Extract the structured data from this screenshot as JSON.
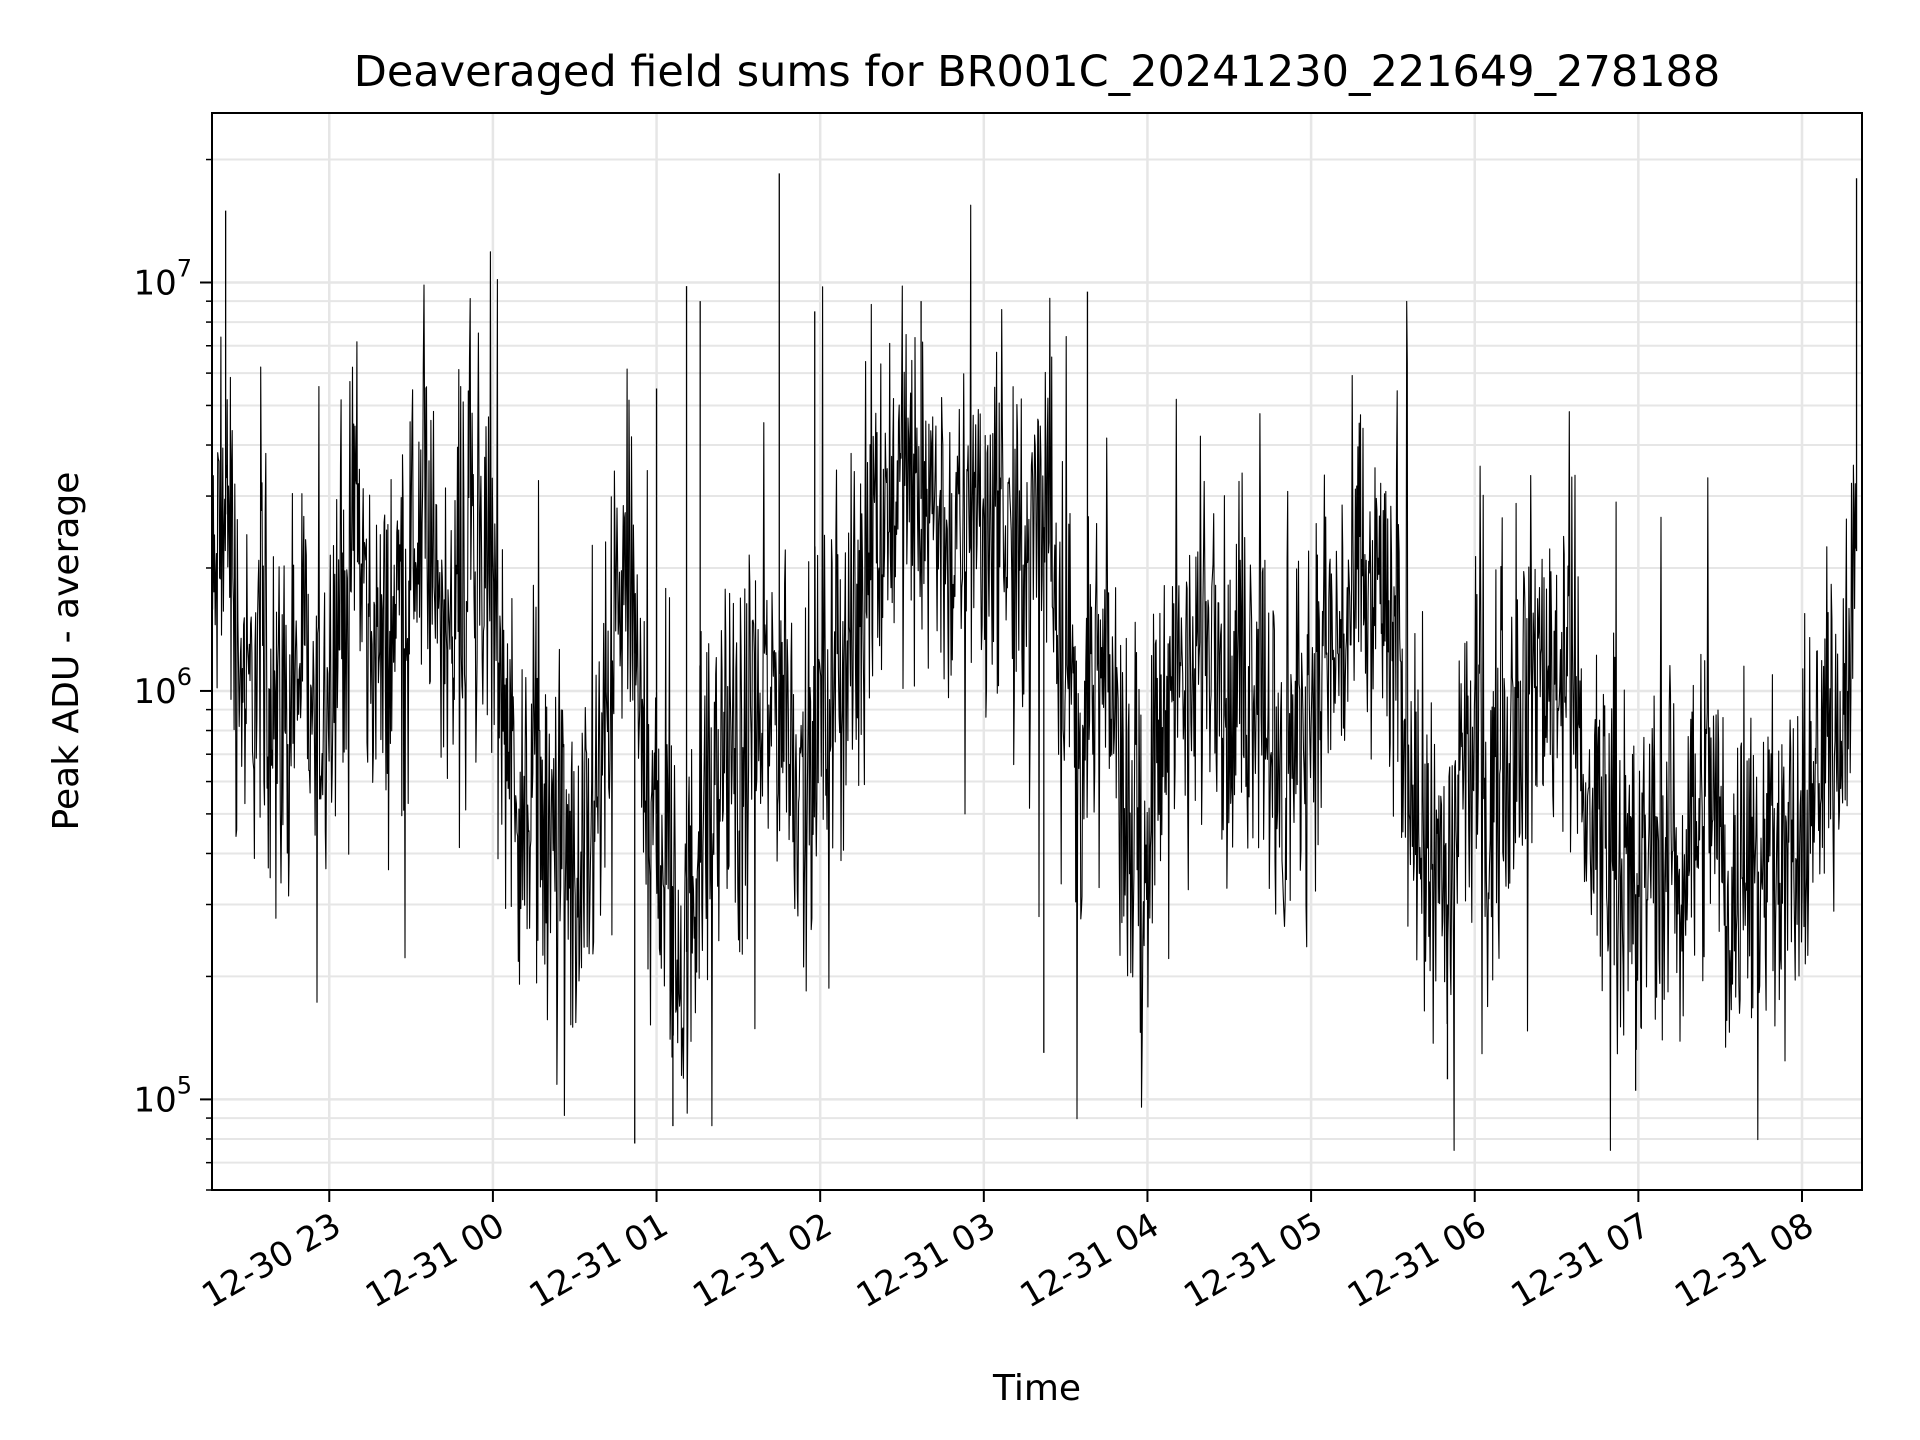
{
  "chart_data": {
    "type": "line",
    "title": "Deaveraged field sums for BR001C_20241230_221649_278188",
    "xlabel": "Time",
    "ylabel": "Peak ADU - average",
    "y_scale": "log",
    "ylim": [
      60000,
      26000000
    ],
    "xlim": [
      "2024-12-30 22:17",
      "2024-12-31 08:22"
    ],
    "grid": true,
    "line_color": "#000000",
    "grid_color": "#e6e6e6",
    "x_ticks": [
      {
        "value": "2024-12-30 23:00",
        "label": "12-30 23"
      },
      {
        "value": "2024-12-31 00:00",
        "label": "12-31 00"
      },
      {
        "value": "2024-12-31 01:00",
        "label": "12-31 01"
      },
      {
        "value": "2024-12-31 02:00",
        "label": "12-31 02"
      },
      {
        "value": "2024-12-31 03:00",
        "label": "12-31 03"
      },
      {
        "value": "2024-12-31 04:00",
        "label": "12-31 04"
      },
      {
        "value": "2024-12-31 05:00",
        "label": "12-31 05"
      },
      {
        "value": "2024-12-31 06:00",
        "label": "12-31 06"
      },
      {
        "value": "2024-12-31 07:00",
        "label": "12-31 07"
      },
      {
        "value": "2024-12-31 08:00",
        "label": "12-31 08"
      }
    ],
    "y_ticks": [
      {
        "value": 100000,
        "base": "10",
        "exp": "5"
      },
      {
        "value": 1000000,
        "base": "10",
        "exp": "6"
      },
      {
        "value": 10000000,
        "base": "10",
        "exp": "7"
      }
    ],
    "series": [
      {
        "x": [
          "2024-12-30 22:17",
          "2024-12-30 22:20",
          "2024-12-30 22:23",
          "2024-12-30 22:26",
          "2024-12-30 22:30",
          "2024-12-30 22:35",
          "2024-12-30 22:40",
          "2024-12-30 22:45",
          "2024-12-30 22:50",
          "2024-12-30 22:55",
          "2024-12-30 23:00",
          "2024-12-30 23:05",
          "2024-12-30 23:10",
          "2024-12-30 23:15",
          "2024-12-30 23:20",
          "2024-12-30 23:25",
          "2024-12-30 23:30",
          "2024-12-30 23:35",
          "2024-12-30 23:40",
          "2024-12-30 23:45",
          "2024-12-30 23:50",
          "2024-12-30 23:55",
          "2024-12-31 00:00",
          "2024-12-31 00:05",
          "2024-12-31 00:10",
          "2024-12-31 00:15",
          "2024-12-31 00:20",
          "2024-12-31 00:25",
          "2024-12-31 00:30",
          "2024-12-31 00:35",
          "2024-12-31 00:40",
          "2024-12-31 00:45",
          "2024-12-31 00:50",
          "2024-12-31 00:55",
          "2024-12-31 01:00",
          "2024-12-31 01:05",
          "2024-12-31 01:10",
          "2024-12-31 01:15",
          "2024-12-31 01:20",
          "2024-12-31 01:25",
          "2024-12-31 01:30",
          "2024-12-31 01:35",
          "2024-12-31 01:40",
          "2024-12-31 01:45",
          "2024-12-31 01:50",
          "2024-12-31 01:55",
          "2024-12-31 02:00",
          "2024-12-31 02:05",
          "2024-12-31 02:10",
          "2024-12-31 02:15",
          "2024-12-31 02:20",
          "2024-12-31 02:25",
          "2024-12-31 02:30",
          "2024-12-31 02:35",
          "2024-12-31 02:40",
          "2024-12-31 02:45",
          "2024-12-31 02:50",
          "2024-12-31 02:55",
          "2024-12-31 03:00",
          "2024-12-31 03:05",
          "2024-12-31 03:10",
          "2024-12-31 03:15",
          "2024-12-31 03:20",
          "2024-12-31 03:25",
          "2024-12-31 03:30",
          "2024-12-31 03:35",
          "2024-12-31 03:40",
          "2024-12-31 03:45",
          "2024-12-31 03:50",
          "2024-12-31 03:55",
          "2024-12-31 04:00",
          "2024-12-31 04:05",
          "2024-12-31 04:10",
          "2024-12-31 04:15",
          "2024-12-31 04:20",
          "2024-12-31 04:25",
          "2024-12-31 04:30",
          "2024-12-31 04:35",
          "2024-12-31 04:40",
          "2024-12-31 04:45",
          "2024-12-31 04:50",
          "2024-12-31 04:55",
          "2024-12-31 05:00",
          "2024-12-31 05:05",
          "2024-12-31 05:10",
          "2024-12-31 05:15",
          "2024-12-31 05:20",
          "2024-12-31 05:25",
          "2024-12-31 05:30",
          "2024-12-31 05:35",
          "2024-12-31 05:40",
          "2024-12-31 05:45",
          "2024-12-31 05:50",
          "2024-12-31 05:55",
          "2024-12-31 06:00",
          "2024-12-31 06:05",
          "2024-12-31 06:10",
          "2024-12-31 06:15",
          "2024-12-31 06:20",
          "2024-12-31 06:25",
          "2024-12-31 06:30",
          "2024-12-31 06:35",
          "2024-12-31 06:40",
          "2024-12-31 06:45",
          "2024-12-31 06:50",
          "2024-12-31 06:55",
          "2024-12-31 07:00",
          "2024-12-31 07:05",
          "2024-12-31 07:10",
          "2024-12-31 07:15",
          "2024-12-31 07:20",
          "2024-12-31 07:25",
          "2024-12-31 07:30",
          "2024-12-31 07:35",
          "2024-12-31 07:40",
          "2024-12-31 07:45",
          "2024-12-31 07:50",
          "2024-12-31 07:55",
          "2024-12-31 08:00",
          "2024-12-31 08:05",
          "2024-12-31 08:10",
          "2024-12-31 08:15",
          "2024-12-31 08:20"
        ],
        "y": [
          1500000,
          2200000,
          3000000,
          1400000,
          900000,
          1200000,
          1000000,
          800000,
          1300000,
          700000,
          1200000,
          1800000,
          2500000,
          1500000,
          1100000,
          1700000,
          2200000,
          2600000,
          1500000,
          1800000,
          2800000,
          2500000,
          1700000,
          900000,
          500000,
          700000,
          400000,
          450000,
          300000,
          350000,
          600000,
          1500000,
          2000000,
          800000,
          500000,
          300000,
          200000,
          400000,
          500000,
          700000,
          600000,
          900000,
          800000,
          1100000,
          700000,
          600000,
          900000,
          1000000,
          1200000,
          1800000,
          2400000,
          3000000,
          3500000,
          2800000,
          3200000,
          2500000,
          2000000,
          2800000,
          2600000,
          3000000,
          2200000,
          1800000,
          2600000,
          2400000,
          1400000,
          700000,
          900000,
          1100000,
          700000,
          500000,
          450000,
          800000,
          1200000,
          1000000,
          1400000,
          1500000,
          800000,
          1000000,
          1200000,
          900000,
          500000,
          700000,
          1000000,
          1200000,
          1300000,
          1500000,
          1800000,
          1900000,
          1300000,
          800000,
          500000,
          350000,
          300000,
          600000,
          800000,
          500000,
          700000,
          900000,
          1000000,
          1200000,
          1100000,
          1600000,
          500000,
          450000,
          500000,
          400000,
          300000,
          450000,
          350000,
          400000,
          500000,
          600000,
          450000,
          300000,
          400000,
          350000,
          450000,
          350000,
          450000,
          550000,
          800000,
          1100000,
          2200000
        ]
      }
    ],
    "spikes": [
      {
        "x": "2024-12-30 22:22",
        "y": 15000000
      },
      {
        "x": "2024-12-31 00:52",
        "y": 78000
      },
      {
        "x": "2024-12-31 01:00",
        "y": 5500000
      },
      {
        "x": "2024-12-31 01:06",
        "y": 86000
      },
      {
        "x": "2024-12-31 01:11",
        "y": 9800000
      },
      {
        "x": "2024-12-31 01:16",
        "y": 9000000
      },
      {
        "x": "2024-12-31 01:45",
        "y": 18500000
      },
      {
        "x": "2024-12-31 01:58",
        "y": 8500000
      },
      {
        "x": "2024-12-31 02:37",
        "y": 9000000
      },
      {
        "x": "2024-12-31 03:22",
        "y": 130000
      },
      {
        "x": "2024-12-31 03:38",
        "y": 9500000
      },
      {
        "x": "2024-12-31 05:50",
        "y": 112000
      },
      {
        "x": "2024-12-31 06:59",
        "y": 105000
      },
      {
        "x": "2024-12-31 08:20",
        "y": 18000000
      }
    ]
  }
}
